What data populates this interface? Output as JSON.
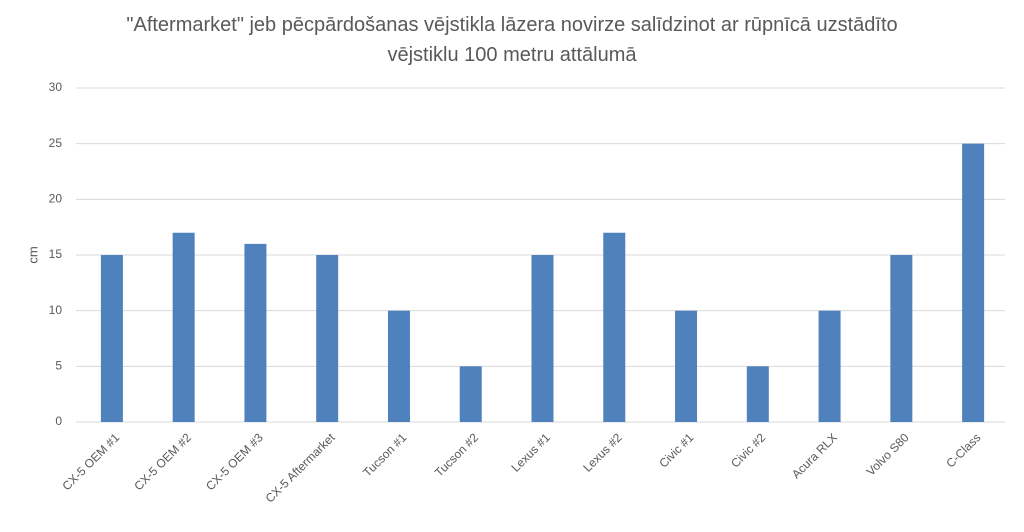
{
  "chart_data": {
    "type": "bar",
    "title": "\"Aftermarket\" jeb pēcpārdošanas vējstikla lāzera novirze salīdzinot ar rūpnīcā uzstādīto vējstiklu 100 metru attālumā",
    "y_label": "cm",
    "categories": [
      "CX-5 OEM #1",
      "CX-5 OEM #2",
      "CX-5 OEM #3",
      "CX-5 Aftermarket",
      "Tucson #1",
      "Tucson #2",
      "Lexus #1",
      "Lexus #2",
      "Civic #1",
      "Civic #2",
      "Acura RLX",
      "Volvo S80",
      "C-Class"
    ],
    "values": [
      15,
      17,
      16,
      15,
      10,
      5,
      15,
      17,
      10,
      5,
      10,
      15,
      25
    ],
    "color": "#4f81bd",
    "ylim": [
      0,
      30
    ],
    "yticks": [
      0,
      5,
      10,
      15,
      20,
      25,
      30
    ],
    "grid": true
  }
}
